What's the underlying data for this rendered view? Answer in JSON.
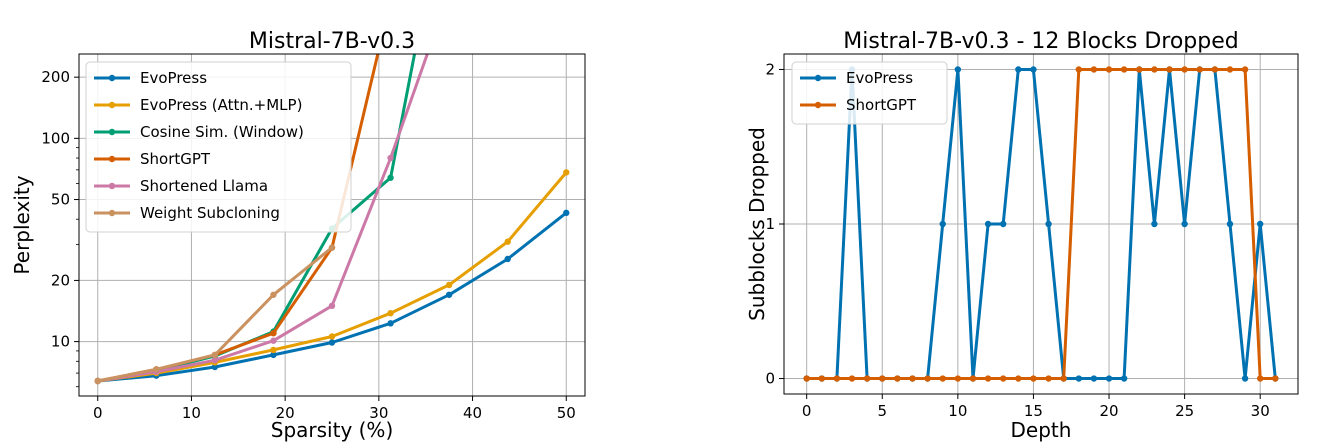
{
  "chart_data": [
    {
      "type": "line",
      "title": "Mistral-7B-v0.3",
      "xlabel": "Sparsity (%)",
      "ylabel": "Perplexity",
      "yscale": "log",
      "xlim": [
        -2,
        52
      ],
      "ylim": [
        5.4,
        260
      ],
      "xticks": [
        0,
        10,
        20,
        30,
        40,
        50
      ],
      "xtick_labels": [
        "0",
        "10",
        "20",
        "30",
        "40",
        "50"
      ],
      "yticks": [
        10,
        20,
        50,
        100,
        200
      ],
      "ytick_labels": [
        "10",
        "20",
        "50",
        "100",
        "200"
      ],
      "grid": true,
      "legend_position": "top-left",
      "series": [
        {
          "name": "EvoPress",
          "color": "#0072b2",
          "x": [
            0,
            6.25,
            12.5,
            18.75,
            25,
            31.25,
            37.5,
            43.75,
            50
          ],
          "y": [
            6.4,
            6.8,
            7.5,
            8.6,
            9.9,
            12.3,
            17.0,
            25.5,
            43.0
          ]
        },
        {
          "name": "EvoPress (Attn.+MLP)",
          "color": "#e69f00",
          "x": [
            0,
            6.25,
            12.5,
            18.75,
            25,
            31.25,
            37.5,
            43.75,
            50
          ],
          "y": [
            6.4,
            7.0,
            7.9,
            9.1,
            10.6,
            13.8,
            19.0,
            31.0,
            68.0
          ]
        },
        {
          "name": "Cosine Sim. (Window)",
          "color": "#009e73",
          "x": [
            0,
            6.25,
            12.5,
            18.75,
            25,
            31.25,
            35
          ],
          "y": [
            6.4,
            7.2,
            8.5,
            11.2,
            36.0,
            64.0,
            500.0
          ]
        },
        {
          "name": "ShortGPT",
          "color": "#d55e00",
          "x": [
            0,
            6.25,
            12.5,
            18.75,
            25,
            31.25
          ],
          "y": [
            6.4,
            7.3,
            8.6,
            11.0,
            29.0,
            480.0
          ]
        },
        {
          "name": "Shortened Llama",
          "color": "#cc79a7",
          "x": [
            0,
            6.25,
            12.5,
            18.75,
            25,
            31.25,
            37
          ],
          "y": [
            6.4,
            7.1,
            8.1,
            10.1,
            15.0,
            80.0,
            450.0
          ]
        },
        {
          "name": "Weight Subcloning",
          "color": "#ca9161",
          "x": [
            0,
            6.25,
            12.5,
            18.75,
            25
          ],
          "y": [
            6.4,
            7.3,
            8.6,
            17.0,
            29.0
          ]
        }
      ]
    },
    {
      "type": "line",
      "title": "Mistral-7B-v0.3 - 12 Blocks Dropped",
      "xlabel": "Depth",
      "ylabel": "Subblocks Dropped",
      "xlim": [
        -1.5,
        32.5
      ],
      "ylim": [
        -0.1,
        2.1
      ],
      "xticks": [
        0,
        5,
        10,
        15,
        20,
        25,
        30
      ],
      "xtick_labels": [
        "0",
        "5",
        "10",
        "15",
        "20",
        "25",
        "30"
      ],
      "yticks": [
        0,
        1,
        2
      ],
      "ytick_labels": [
        "0",
        "1",
        "2"
      ],
      "grid": true,
      "legend_position": "top-left",
      "series": [
        {
          "name": "EvoPress",
          "color": "#0072b2",
          "x": [
            0,
            1,
            2,
            3,
            4,
            5,
            6,
            7,
            8,
            9,
            10,
            11,
            12,
            13,
            14,
            15,
            16,
            17,
            18,
            19,
            20,
            21,
            22,
            23,
            24,
            25,
            26,
            27,
            28,
            29,
            30,
            31
          ],
          "y": [
            0,
            0,
            0,
            2,
            0,
            0,
            0,
            0,
            0,
            1,
            2,
            0,
            1,
            1,
            2,
            2,
            1,
            0,
            0,
            0,
            0,
            0,
            2,
            1,
            2,
            1,
            2,
            2,
            1,
            0,
            1,
            0
          ]
        },
        {
          "name": "ShortGPT",
          "color": "#d55e00",
          "x": [
            0,
            1,
            2,
            3,
            4,
            5,
            6,
            7,
            8,
            9,
            10,
            11,
            12,
            13,
            14,
            15,
            16,
            17,
            18,
            19,
            20,
            21,
            22,
            23,
            24,
            25,
            26,
            27,
            28,
            29,
            30,
            31
          ],
          "y": [
            0,
            0,
            0,
            0,
            0,
            0,
            0,
            0,
            0,
            0,
            0,
            0,
            0,
            0,
            0,
            0,
            0,
            0,
            2,
            2,
            2,
            2,
            2,
            2,
            2,
            2,
            2,
            2,
            2,
            2,
            0,
            0
          ]
        }
      ]
    }
  ]
}
